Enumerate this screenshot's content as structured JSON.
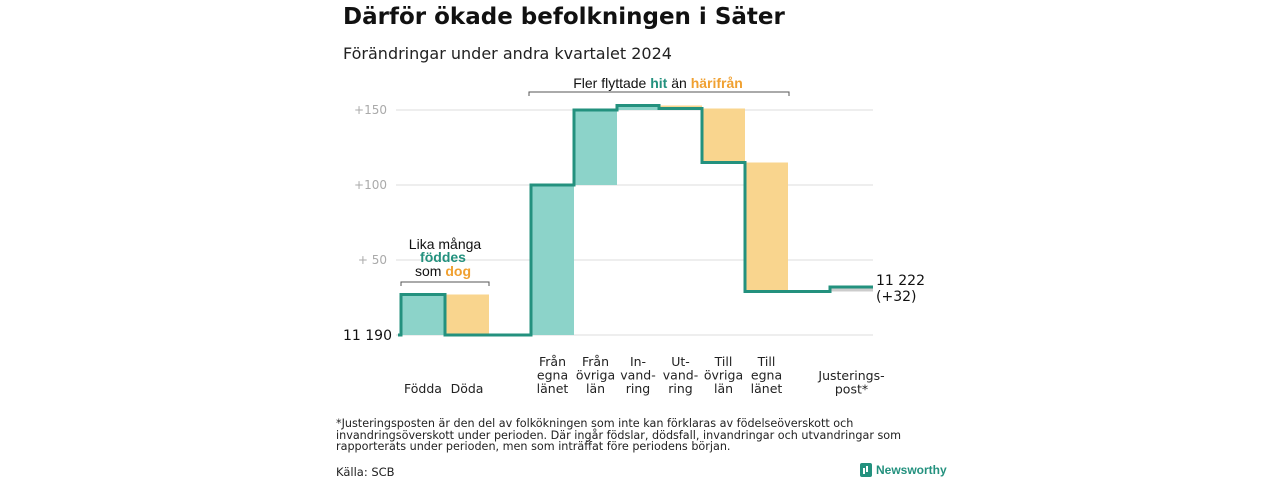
{
  "title": "Därför ökade befolkningen i Säter",
  "subtitle": "Förändringar under andra kvartalet 2024",
  "footnote": "*Justeringsposten är den del av folkökningen som inte kan förklaras av födelseöverskott och invandringsöverskott under perioden. Där ingår födslar, dödsfall, invandringar och utvandringar som rapporterats under perioden, men som inträffat före periodens början.",
  "source": "Källa: SCB",
  "brand": {
    "name": "Newsworthy",
    "icon": "newsworthy-logo-icon"
  },
  "colors": {
    "increase": "#8cd3c9",
    "decrease": "#f9d58e",
    "line": "#23917e",
    "hit": "#23917e",
    "harifran": "#f0a030",
    "grid": "#dddddd",
    "axis_text": "#aaaaaa"
  },
  "chart_data": {
    "type": "waterfall",
    "start_label": "11  190",
    "start_value": 11190,
    "end_label": "11 222",
    "end_change_label": "(+32)",
    "end_value": 11222,
    "ylim": [
      0,
      160
    ],
    "yticks": [
      {
        "value": 50,
        "label": "+  50"
      },
      {
        "value": 100,
        "label": "+100"
      },
      {
        "value": 150,
        "label": "+150"
      }
    ],
    "grid": true,
    "steps": [
      {
        "label": "Födda",
        "change": 27,
        "kind": "increase"
      },
      {
        "label": "Döda",
        "change": -27,
        "kind": "decrease"
      },
      {
        "label": "Från egna länet",
        "change": 100,
        "kind": "increase"
      },
      {
        "label": "Från övriga län",
        "change": 50,
        "kind": "increase"
      },
      {
        "label": "In-vand-ring",
        "change": 3,
        "kind": "increase"
      },
      {
        "label": "Ut-vand-ring",
        "change": -2,
        "kind": "decrease"
      },
      {
        "label": "Till övriga län",
        "change": -36,
        "kind": "decrease"
      },
      {
        "label": "Till egna länet",
        "change": -86,
        "kind": "decrease"
      },
      {
        "label": "Justerings-post*",
        "change": 3,
        "kind": "adjustment"
      }
    ],
    "tick_labels": [
      [
        "Födda"
      ],
      [
        "Döda"
      ],
      [
        "Från",
        "egna",
        "länet"
      ],
      [
        "Från",
        "övriga",
        "län"
      ],
      [
        "In-",
        "vand-",
        "ring"
      ],
      [
        "Ut-",
        "vand-",
        "ring"
      ],
      [
        "Till",
        "övriga",
        "län"
      ],
      [
        "Till",
        "egna",
        "länet"
      ],
      [
        "Justerings-",
        "post*"
      ]
    ],
    "annotations": {
      "births_deaths": {
        "line1": "Lika många",
        "line2": "föddes",
        "line3_prefix": "som ",
        "line3_highlight": "dog"
      },
      "migration": {
        "prefix": "Fler flyttade ",
        "hit": "hit",
        "middle": " än ",
        "harifran": "härifrån"
      }
    }
  }
}
